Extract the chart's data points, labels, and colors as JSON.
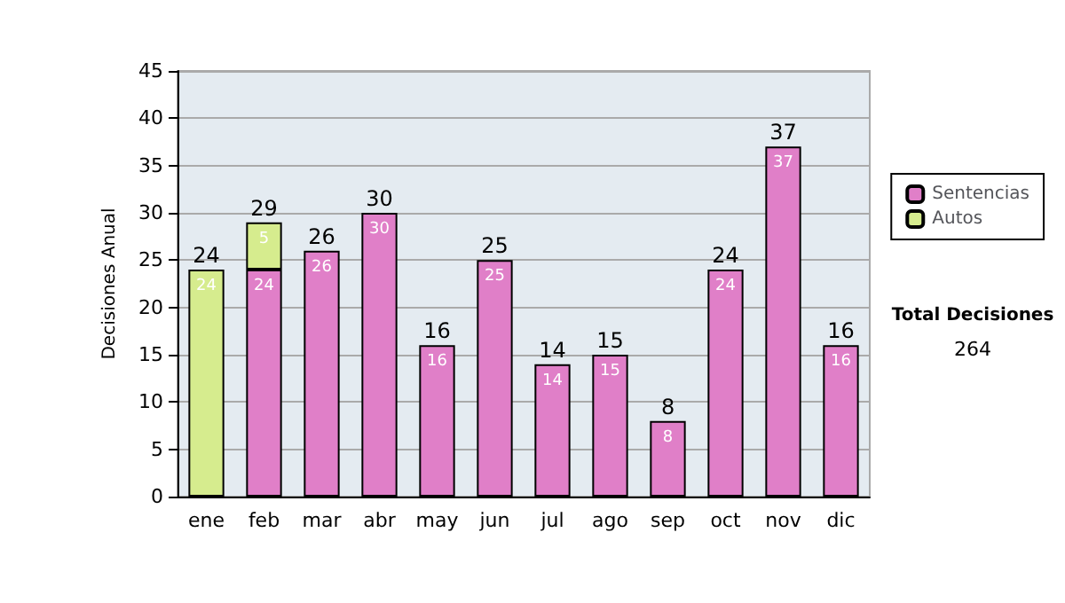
{
  "chart_data": {
    "type": "bar",
    "ylabel": "Decisiones Anual",
    "categories": [
      "ene",
      "feb",
      "mar",
      "abr",
      "may",
      "jun",
      "jul",
      "ago",
      "sep",
      "oct",
      "nov",
      "dic"
    ],
    "series": [
      {
        "name": "Sentencias",
        "color": "#e07fc8",
        "values": [
          null,
          24,
          26,
          30,
          16,
          25,
          14,
          15,
          8,
          24,
          37,
          16
        ]
      },
      {
        "name": "Autos",
        "color": "#d6ec8e",
        "values": [
          24,
          5,
          null,
          null,
          null,
          null,
          null,
          null,
          null,
          null,
          null,
          null
        ]
      }
    ],
    "stacked": true,
    "data_labels": true,
    "totals": [
      "24",
      "29",
      "26",
      "30",
      "16",
      "25",
      "14",
      "15",
      "8",
      "24",
      "37",
      "16"
    ],
    "ylim": [
      0,
      45
    ],
    "yticks": [
      0,
      5,
      10,
      15,
      20,
      25,
      30,
      35,
      40,
      45
    ],
    "grid": "y",
    "legend": "right",
    "annotations": [
      "Total Decisiones",
      "264"
    ]
  }
}
